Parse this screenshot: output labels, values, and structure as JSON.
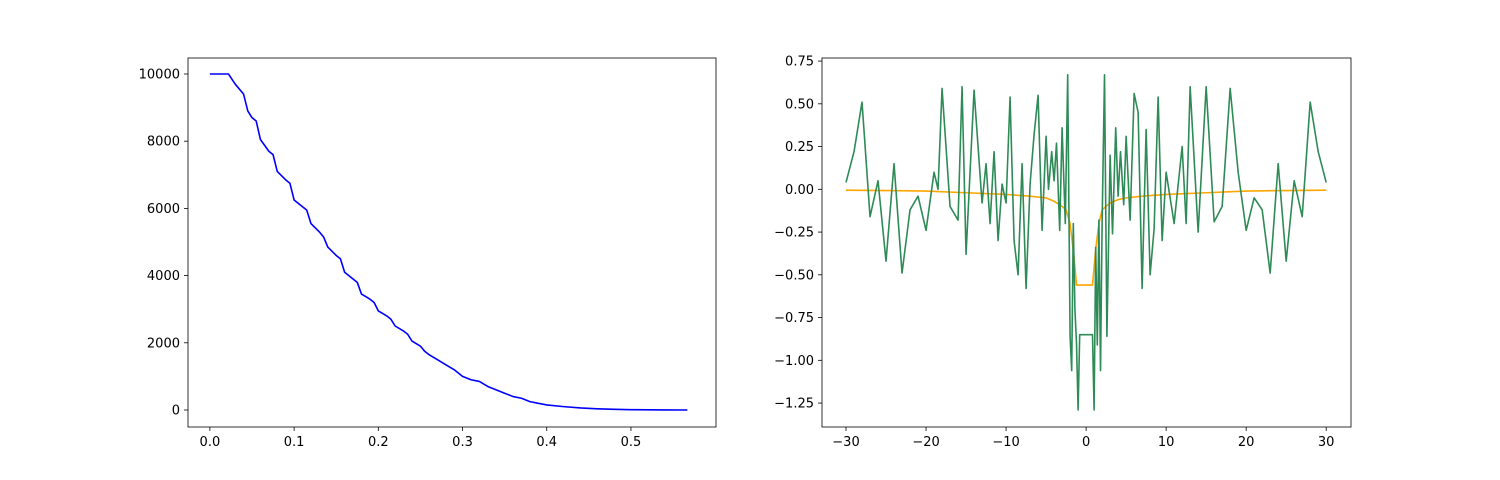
{
  "chart_data": [
    {
      "type": "line",
      "xlim": [
        -0.026,
        0.601
      ],
      "ylim": [
        -506,
        10476
      ],
      "xticks": [
        {
          "value": 0,
          "label": "0.0"
        },
        0.1,
        0.2,
        0.3,
        0.4,
        0.5
      ],
      "yticks": [
        0,
        2000,
        4000,
        6000,
        8000,
        10000
      ],
      "series": [
        {
          "color": "#0000ff",
          "x": [
            0,
            0.022,
            0.03,
            0.04,
            0.045,
            0.05,
            0.055,
            0.06,
            0.07,
            0.075,
            0.08,
            0.09,
            0.095,
            0.1,
            0.11,
            0.115,
            0.12,
            0.13,
            0.135,
            0.14,
            0.15,
            0.155,
            0.16,
            0.17,
            0.175,
            0.18,
            0.19,
            0.195,
            0.2,
            0.21,
            0.215,
            0.22,
            0.23,
            0.235,
            0.24,
            0.25,
            0.255,
            0.26,
            0.27,
            0.28,
            0.29,
            0.3,
            0.31,
            0.32,
            0.33,
            0.34,
            0.35,
            0.36,
            0.37,
            0.38,
            0.39,
            0.4,
            0.42,
            0.44,
            0.46,
            0.48,
            0.5,
            0.54,
            0.567
          ],
          "values": [
            10000,
            10000,
            9700,
            9400,
            8900,
            8700,
            8600,
            8050,
            7700,
            7600,
            7100,
            6850,
            6750,
            6250,
            6050,
            5950,
            5550,
            5300,
            5150,
            4850,
            4600,
            4500,
            4100,
            3900,
            3800,
            3450,
            3300,
            3200,
            2950,
            2800,
            2700,
            2500,
            2350,
            2250,
            2050,
            1900,
            1750,
            1650,
            1500,
            1350,
            1200,
            1000,
            900,
            850,
            700,
            600,
            500,
            400,
            350,
            250,
            200,
            150,
            100,
            60,
            35,
            20,
            10,
            3,
            0
          ]
        }
      ]
    },
    {
      "type": "line",
      "xlim": [
        -33,
        33.1
      ],
      "ylim": [
        -1.39,
        0.768
      ],
      "xticks": [
        {
          "value": -30,
          "label": "−30"
        },
        {
          "value": -20,
          "label": "−20"
        },
        {
          "value": -10,
          "label": "−10"
        },
        0,
        10,
        20,
        30
      ],
      "yticks": [
        {
          "value": -1.25,
          "label": "−1.25"
        },
        {
          "value": -1,
          "label": "−1.00"
        },
        {
          "value": -0.75,
          "label": "−0.75"
        },
        {
          "value": -0.5,
          "label": "−0.50"
        },
        {
          "value": -0.25,
          "label": "−0.25"
        },
        {
          "value": 0,
          "label": "0.00"
        },
        0.25,
        {
          "value": 0.5,
          "label": "0.50"
        },
        0.75
      ],
      "series": [
        {
          "color": "#ffa500",
          "x": [
            -30,
            -25,
            -20,
            -15,
            -10,
            -7,
            -5,
            -4,
            -3,
            -2.5,
            -2,
            -1.5,
            -1.2,
            0.8,
            1.2,
            1.6,
            2,
            2.5,
            3,
            4,
            5,
            7,
            10,
            15,
            20,
            25,
            30
          ],
          "values": [
            -0.005,
            -0.007,
            -0.01,
            -0.02,
            -0.03,
            -0.04,
            -0.05,
            -0.07,
            -0.1,
            -0.12,
            -0.2,
            -0.4,
            -0.56,
            -0.56,
            -0.35,
            -0.2,
            -0.12,
            -0.1,
            -0.08,
            -0.06,
            -0.05,
            -0.04,
            -0.03,
            -0.02,
            -0.01,
            -0.007,
            -0.005
          ]
        },
        {
          "color": "#2e8b57",
          "x": [
            -30,
            -29,
            -28,
            -27,
            -26,
            -25,
            -24,
            -23,
            -22,
            -21,
            -20,
            -19,
            -18.5,
            -18,
            -17,
            -16,
            -15.5,
            -15,
            -14,
            -13,
            -12.5,
            -12,
            -11.5,
            -11,
            -10.5,
            -10,
            -9.5,
            -9,
            -8.5,
            -8,
            -7.5,
            -7,
            -6.5,
            -6,
            -5.5,
            -5,
            -4.7,
            -4.3,
            -4,
            -3.7,
            -3.3,
            -3,
            -2.6,
            -2.3,
            -2,
            -1.8,
            -1.6,
            -1.4,
            -1.2,
            -1,
            -0.8,
            0,
            0.8,
            1,
            1.2,
            1.4,
            1.6,
            1.8,
            2,
            2.3,
            2.6,
            3,
            3.3,
            3.7,
            4,
            4.3,
            4.7,
            5,
            5.5,
            6,
            6.5,
            7,
            7.5,
            8,
            8.5,
            9,
            9.5,
            10,
            11,
            12,
            12.5,
            13,
            14,
            15,
            16,
            17,
            18,
            19,
            20,
            21,
            22,
            23,
            24,
            25,
            26,
            27,
            28,
            29,
            30
          ],
          "values": [
            0.04,
            0.22,
            0.51,
            -0.16,
            0.05,
            -0.42,
            0.15,
            -0.49,
            -0.12,
            -0.04,
            -0.24,
            0.1,
            0,
            0.59,
            -0.1,
            -0.18,
            0.6,
            -0.38,
            0.58,
            -0.08,
            0.15,
            -0.2,
            0.22,
            -0.3,
            0.03,
            -0.08,
            0.54,
            -0.3,
            -0.5,
            0.15,
            -0.58,
            0.03,
            0.32,
            0.55,
            -0.24,
            0.31,
            0,
            0.22,
            0.05,
            0.27,
            -0.24,
            0.36,
            -0.2,
            0.67,
            -0.86,
            -1.06,
            -0.2,
            -0.7,
            -0.9,
            -1.29,
            -0.85,
            -0.85,
            -0.85,
            -1.29,
            -0.34,
            -0.91,
            -0.18,
            -1.06,
            -0.2,
            0.67,
            -0.86,
            0.2,
            -0.26,
            0.36,
            -0.04,
            0.22,
            -0.09,
            0.31,
            -0.18,
            0.56,
            0.45,
            -0.58,
            0.35,
            -0.5,
            -0.23,
            0.54,
            -0.3,
            0.1,
            -0.2,
            0.25,
            -0.2,
            0.6,
            -0.25,
            0.6,
            -0.19,
            -0.1,
            0.59,
            0.1,
            -0.24,
            -0.05,
            -0.12,
            -0.49,
            0.15,
            -0.42,
            0.05,
            -0.16,
            0.51,
            0.22,
            0.04
          ]
        }
      ]
    }
  ]
}
